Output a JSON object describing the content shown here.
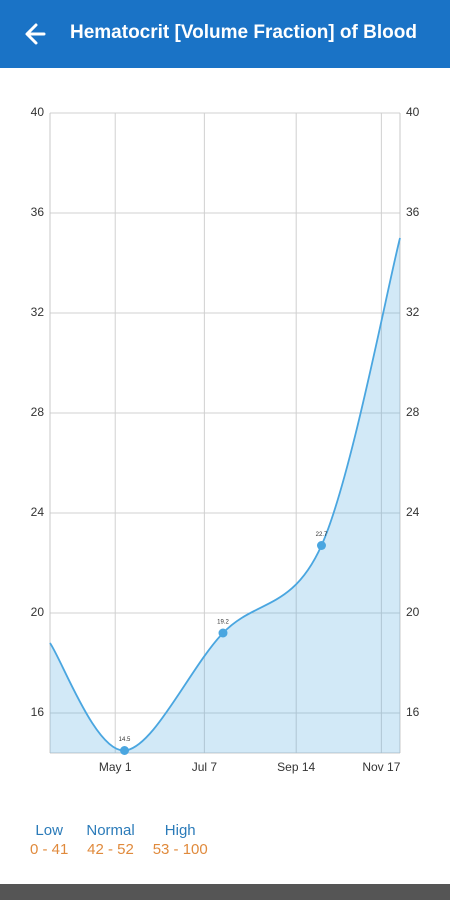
{
  "header": {
    "title": "Hematocrit [Volume Fraction] of Blood"
  },
  "chart_data": {
    "type": "line",
    "x": [
      72,
      128,
      202,
      276,
      335
    ],
    "series": [
      {
        "name": "Hematocrit",
        "color": "#4aa6e0",
        "values": [
          18.8,
          14.5,
          19.2,
          22.7,
          35.0
        ],
        "value_labels": [
          null,
          "14.5",
          "19.2",
          "22.7",
          null
        ]
      }
    ],
    "xlim": [
      72,
      335
    ],
    "xticks": [
      {
        "value": 121,
        "label": "May 1"
      },
      {
        "value": 188,
        "label": "Jul 7"
      },
      {
        "value": 257,
        "label": "Sep 14"
      },
      {
        "value": 321,
        "label": "Nov 17"
      }
    ],
    "ylim": [
      14.4,
      40
    ],
    "yticks": [
      16,
      20,
      24,
      28,
      32,
      36,
      40
    ],
    "grid": true
  },
  "legend": [
    {
      "name": "Low",
      "range": "0 - 41"
    },
    {
      "name": "Normal",
      "range": "42 - 52"
    },
    {
      "name": "High",
      "range": "53 - 100"
    }
  ]
}
